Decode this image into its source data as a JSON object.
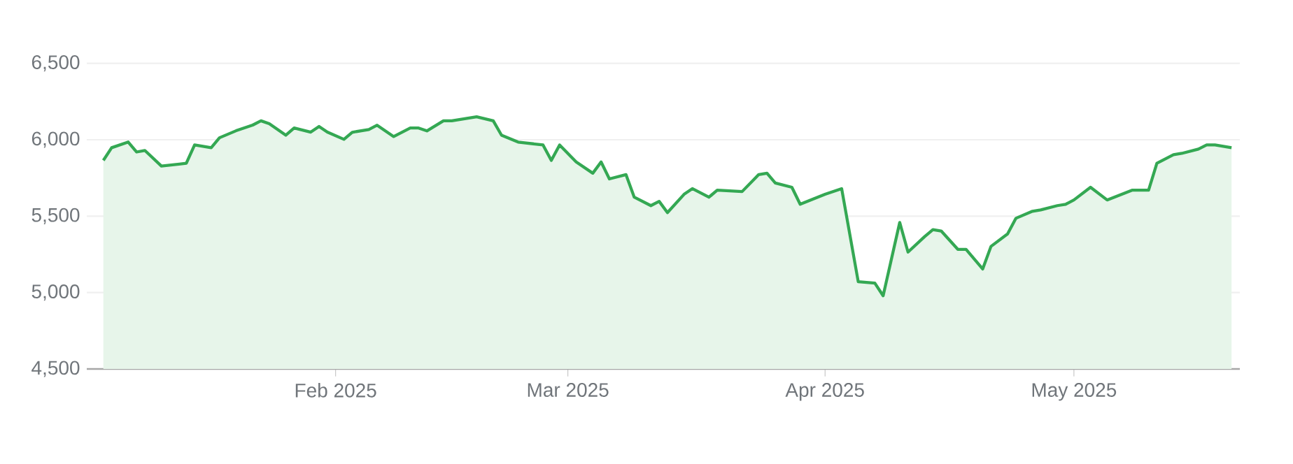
{
  "chart_data": {
    "type": "area",
    "color": "#34a853",
    "x": [
      "2025-01-04",
      "2025-01-05",
      "2025-01-07",
      "2025-01-08",
      "2025-01-09",
      "2025-01-11",
      "2025-01-14",
      "2025-01-15",
      "2025-01-17",
      "2025-01-18",
      "2025-01-20",
      "2025-01-22",
      "2025-01-23",
      "2025-01-24",
      "2025-01-26",
      "2025-01-27",
      "2025-01-29",
      "2025-01-30",
      "2025-01-31",
      "2025-02-02",
      "2025-02-03",
      "2025-02-05",
      "2025-02-06",
      "2025-02-08",
      "2025-02-10",
      "2025-02-11",
      "2025-02-12",
      "2025-02-14",
      "2025-02-15",
      "2025-02-18",
      "2025-02-20",
      "2025-02-21",
      "2025-02-23",
      "2025-02-26",
      "2025-02-27",
      "2025-02-28",
      "2025-03-02",
      "2025-03-04",
      "2025-03-05",
      "2025-03-06",
      "2025-03-08",
      "2025-03-09",
      "2025-03-11",
      "2025-03-12",
      "2025-03-13",
      "2025-03-15",
      "2025-03-16",
      "2025-03-18",
      "2025-03-19",
      "2025-03-22",
      "2025-03-24",
      "2025-03-25",
      "2025-03-26",
      "2025-03-28",
      "2025-03-29",
      "2025-04-01",
      "2025-04-03",
      "2025-04-05",
      "2025-04-07",
      "2025-04-08",
      "2025-04-10",
      "2025-04-11",
      "2025-04-13",
      "2025-04-14",
      "2025-04-15",
      "2025-04-17",
      "2025-04-18",
      "2025-04-20",
      "2025-04-21",
      "2025-04-23",
      "2025-04-24",
      "2025-04-26",
      "2025-04-27",
      "2025-04-29",
      "2025-04-30",
      "2025-05-01",
      "2025-05-03",
      "2025-05-05",
      "2025-05-08",
      "2025-05-10",
      "2025-05-11",
      "2025-05-13",
      "2025-05-14",
      "2025-05-16",
      "2025-05-17",
      "2025-05-18",
      "2025-05-20"
    ],
    "values": [
      5865,
      5948,
      5985,
      5920,
      5930,
      5828,
      5846,
      5966,
      5948,
      6013,
      6059,
      6096,
      6124,
      6105,
      6030,
      6077,
      6050,
      6087,
      6050,
      6003,
      6049,
      6067,
      6095,
      6021,
      6077,
      6077,
      6058,
      6124,
      6124,
      6150,
      6124,
      6030,
      5985,
      5966,
      5865,
      5966,
      5855,
      5781,
      5855,
      5744,
      5772,
      5624,
      5569,
      5597,
      5523,
      5643,
      5680,
      5624,
      5670,
      5661,
      5772,
      5781,
      5717,
      5689,
      5578,
      5643,
      5680,
      5071,
      5062,
      4979,
      5459,
      5265,
      5366,
      5412,
      5403,
      5283,
      5283,
      5154,
      5302,
      5384,
      5486,
      5532,
      5541,
      5569,
      5578,
      5606,
      5689,
      5606,
      5670,
      5670,
      5846,
      5902,
      5911,
      5939,
      5966,
      5966,
      5948
    ],
    "xlim": [
      "2025-01-02",
      "2025-05-21"
    ],
    "xticks": [
      {
        "value": "2025-02-01",
        "label": "Feb 2025"
      },
      {
        "value": "2025-03-01",
        "label": "Mar 2025"
      },
      {
        "value": "2025-04-01",
        "label": "Apr 2025"
      },
      {
        "value": "2025-05-01",
        "label": "May 2025"
      }
    ],
    "ylim": [
      4500,
      6500
    ],
    "yticks": [
      {
        "value": 4500,
        "label": "4,500"
      },
      {
        "value": 5000,
        "label": "5,000"
      },
      {
        "value": 5500,
        "label": "5,500"
      },
      {
        "value": 6000,
        "label": "6,000"
      },
      {
        "value": 6500,
        "label": "6,500"
      }
    ],
    "grid": "y",
    "line_style": "solid"
  }
}
